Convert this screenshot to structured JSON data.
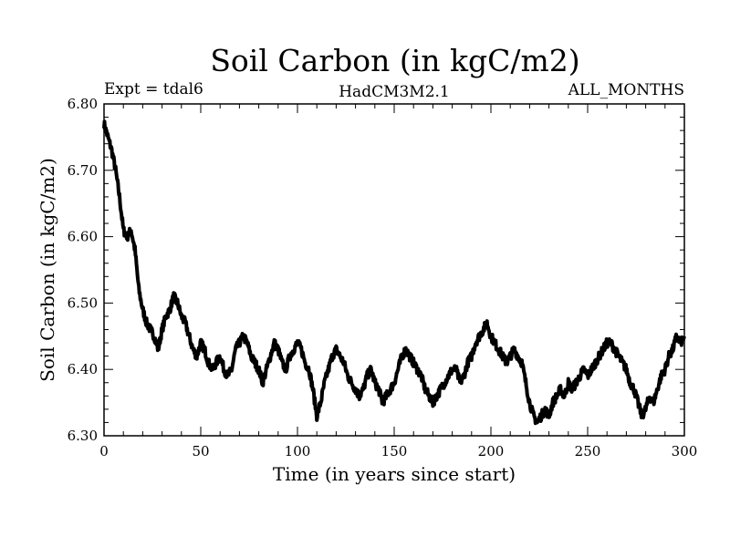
{
  "chart_data": {
    "type": "line",
    "title": "Soil Carbon (in kgC/m2)",
    "subtitle_left": "Expt = tdal6",
    "subtitle_center": "HadCM3M2.1",
    "subtitle_right": "ALL_MONTHS",
    "xlabel": "Time (in years since start)",
    "ylabel": "Soil Carbon (in kgC/m2)",
    "xlim": [
      0,
      300
    ],
    "ylim": [
      6.3,
      6.8
    ],
    "x_ticks": [
      "0",
      "50",
      "100",
      "150",
      "200",
      "250",
      "300"
    ],
    "y_ticks": [
      "6.30",
      "6.40",
      "6.50",
      "6.60",
      "6.70",
      "6.80"
    ],
    "grid": false,
    "series": [
      {
        "name": "Soil Carbon",
        "color": "#000000",
        "x": [
          0,
          2,
          4,
          6,
          8,
          10,
          12,
          14,
          16,
          18,
          20,
          22,
          24,
          26,
          28,
          30,
          32,
          34,
          36,
          38,
          40,
          42,
          44,
          46,
          48,
          50,
          52,
          54,
          56,
          58,
          60,
          62,
          64,
          66,
          68,
          70,
          72,
          74,
          76,
          78,
          80,
          82,
          84,
          86,
          88,
          90,
          92,
          94,
          96,
          98,
          100,
          102,
          104,
          106,
          108,
          110,
          112,
          114,
          116,
          118,
          120,
          122,
          124,
          126,
          128,
          130,
          132,
          134,
          136,
          138,
          140,
          142,
          144,
          146,
          148,
          150,
          152,
          154,
          156,
          158,
          160,
          162,
          164,
          166,
          168,
          170,
          172,
          174,
          176,
          178,
          180,
          182,
          184,
          186,
          188,
          190,
          192,
          194,
          196,
          198,
          200,
          202,
          204,
          206,
          208,
          210,
          212,
          214,
          216,
          218,
          220,
          222,
          224,
          226,
          228,
          230,
          232,
          234,
          236,
          238,
          240,
          242,
          244,
          246,
          248,
          250,
          252,
          254,
          256,
          258,
          260,
          262,
          264,
          266,
          268,
          270,
          272,
          274,
          276,
          278,
          280,
          282,
          284,
          286,
          288,
          290,
          292,
          294,
          296,
          298,
          300
        ],
        "values": [
          6.77,
          6.75,
          6.73,
          6.7,
          6.66,
          6.61,
          6.6,
          6.61,
          6.58,
          6.52,
          6.49,
          6.47,
          6.46,
          6.45,
          6.43,
          6.46,
          6.48,
          6.49,
          6.51,
          6.5,
          6.48,
          6.47,
          6.45,
          6.43,
          6.42,
          6.44,
          6.43,
          6.41,
          6.4,
          6.41,
          6.42,
          6.4,
          6.39,
          6.4,
          6.43,
          6.44,
          6.45,
          6.44,
          6.42,
          6.41,
          6.4,
          6.38,
          6.4,
          6.42,
          6.44,
          6.43,
          6.41,
          6.4,
          6.42,
          6.43,
          6.44,
          6.43,
          6.41,
          6.4,
          6.37,
          6.33,
          6.35,
          6.38,
          6.4,
          6.42,
          6.43,
          6.42,
          6.41,
          6.39,
          6.38,
          6.37,
          6.36,
          6.37,
          6.39,
          6.4,
          6.38,
          6.37,
          6.35,
          6.36,
          6.37,
          6.38,
          6.4,
          6.42,
          6.43,
          6.42,
          6.41,
          6.4,
          6.39,
          6.37,
          6.36,
          6.35,
          6.36,
          6.37,
          6.38,
          6.39,
          6.4,
          6.4,
          6.38,
          6.39,
          6.41,
          6.42,
          6.44,
          6.45,
          6.46,
          6.47,
          6.45,
          6.44,
          6.43,
          6.42,
          6.41,
          6.42,
          6.43,
          6.42,
          6.41,
          6.38,
          6.35,
          6.33,
          6.32,
          6.33,
          6.34,
          6.33,
          6.35,
          6.36,
          6.37,
          6.36,
          6.38,
          6.37,
          6.38,
          6.39,
          6.4,
          6.39,
          6.4,
          6.41,
          6.42,
          6.43,
          6.44,
          6.44,
          6.43,
          6.42,
          6.41,
          6.4,
          6.38,
          6.37,
          6.35,
          6.33,
          6.34,
          6.36,
          6.35,
          6.37,
          6.39,
          6.4,
          6.42,
          6.43,
          6.45,
          6.44,
          6.45
        ]
      }
    ]
  }
}
